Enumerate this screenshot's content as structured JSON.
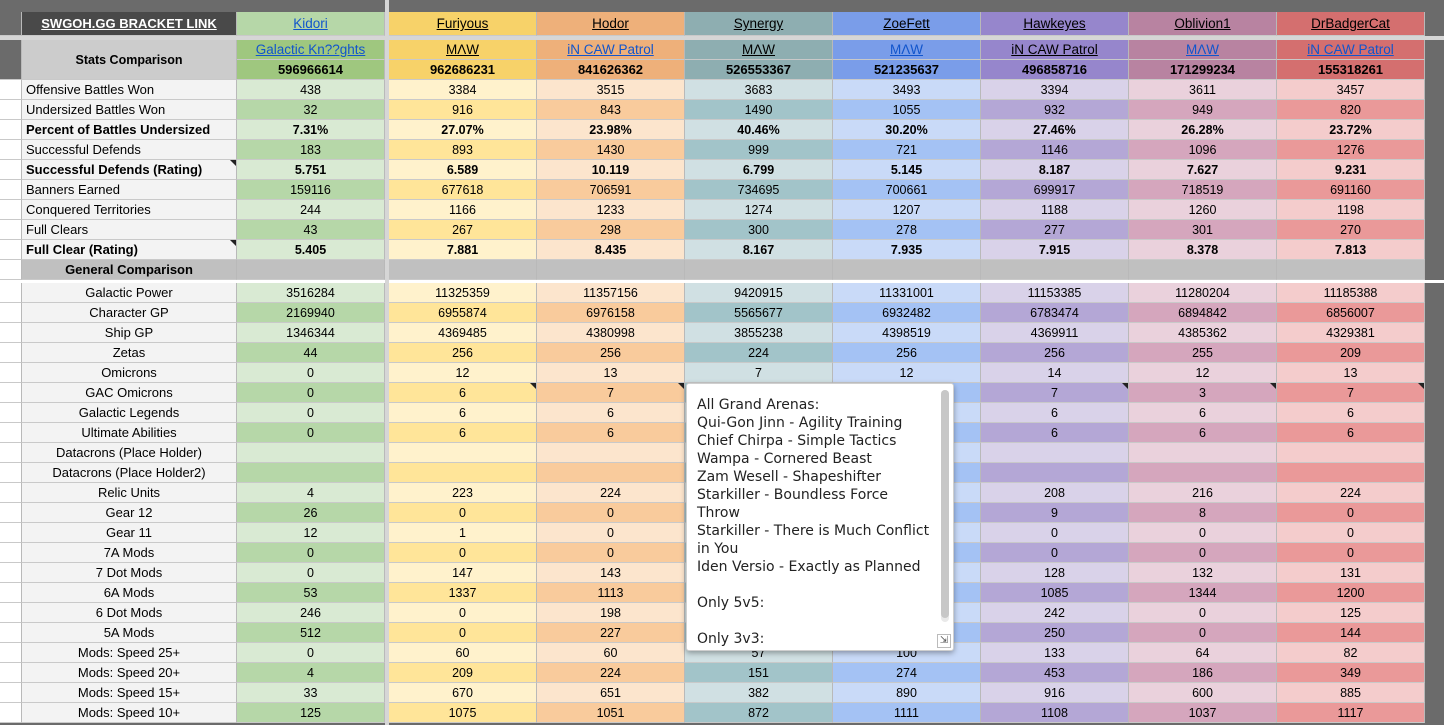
{
  "bracket_link": "SWGOH.GG BRACKET LINK",
  "stats_label": "Stats Comparison",
  "general_label": "General Comparison",
  "players": [
    {
      "name": "Kidori",
      "guild": "Galactic Kn??ghts",
      "guild_style": "link",
      "ally": "596966614",
      "color": "#9fc77f",
      "light": "#d9ead3",
      "mid": "#b6d7a8"
    },
    {
      "name": "Furiyous",
      "guild": "MΛW",
      "guild_style": "plain",
      "ally": "962686231",
      "color": "#f7d269",
      "light": "#fff2cc",
      "mid": "#ffe599"
    },
    {
      "name": "Hodor",
      "guild": "iN CAW Patrol",
      "guild_style": "link",
      "ally": "841626362",
      "color": "#eeb07a",
      "light": "#fce5cd",
      "mid": "#f9cb9c"
    },
    {
      "name": "Synergy",
      "guild": "MΛW",
      "guild_style": "plain",
      "ally": "526553367",
      "color": "#8eaeb1",
      "light": "#d0e0e3",
      "mid": "#a2c4c9"
    },
    {
      "name": "ZoeFett",
      "guild": "MΛW",
      "guild_style": "link",
      "ally": "521235637",
      "color": "#7a9de9",
      "light": "#c9daf8",
      "mid": "#a4c2f4"
    },
    {
      "name": "Hawkeyes",
      "guild": "iN CAW Patrol",
      "guild_style": "plain",
      "ally": "496858716",
      "color": "#9686cc",
      "light": "#d9d2e9",
      "mid": "#b4a7d6"
    },
    {
      "name": "Oblivion1",
      "guild": "MΛW",
      "guild_style": "link",
      "ally": "171299234",
      "color": "#b883a1",
      "light": "#ead1dc",
      "mid": "#d5a6bd"
    },
    {
      "name": "DrBadgerCat",
      "guild": "iN CAW Patrol",
      "guild_style": "link",
      "ally": "155318261",
      "color": "#d46f6f",
      "light": "#f4cccc",
      "mid": "#ea9999"
    }
  ],
  "stats_rows": [
    {
      "label": "Offensive Battles Won",
      "bold": false,
      "values": [
        "438",
        "3384",
        "3515",
        "3683",
        "3493",
        "3394",
        "3611",
        "3457"
      ]
    },
    {
      "label": "Undersized Battles Won",
      "bold": false,
      "values": [
        "32",
        "916",
        "843",
        "1490",
        "1055",
        "932",
        "949",
        "820"
      ]
    },
    {
      "label": "Percent of Battles Undersized",
      "bold": true,
      "values": [
        "7.31%",
        "27.07%",
        "23.98%",
        "40.46%",
        "30.20%",
        "27.46%",
        "26.28%",
        "23.72%"
      ]
    },
    {
      "label": "Successful Defends",
      "bold": false,
      "values": [
        "183",
        "893",
        "1430",
        "999",
        "721",
        "1146",
        "1096",
        "1276"
      ]
    },
    {
      "label": "Successful Defends (Rating)",
      "bold": true,
      "note": true,
      "values": [
        "5.751",
        "6.589",
        "10.119",
        "6.799",
        "5.145",
        "8.187",
        "7.627",
        "9.231"
      ]
    },
    {
      "label": "Banners Earned",
      "bold": false,
      "values": [
        "159116",
        "677618",
        "706591",
        "734695",
        "700661",
        "699917",
        "718519",
        "691160"
      ]
    },
    {
      "label": "Conquered Territories",
      "bold": false,
      "values": [
        "244",
        "1166",
        "1233",
        "1274",
        "1207",
        "1188",
        "1260",
        "1198"
      ]
    },
    {
      "label": "Full Clears",
      "bold": false,
      "values": [
        "43",
        "267",
        "298",
        "300",
        "278",
        "277",
        "301",
        "270"
      ]
    },
    {
      "label": "Full Clear (Rating)",
      "bold": true,
      "note": true,
      "values": [
        "5.405",
        "7.881",
        "8.435",
        "8.167",
        "7.935",
        "7.915",
        "8.378",
        "7.813"
      ]
    }
  ],
  "general_rows": [
    {
      "label": "Galactic Power",
      "values": [
        "3516284",
        "11325359",
        "11357156",
        "9420915",
        "11331001",
        "11153385",
        "11280204",
        "11185388"
      ]
    },
    {
      "label": "Character GP",
      "values": [
        "2169940",
        "6955874",
        "6976158",
        "5565677",
        "6932482",
        "6783474",
        "6894842",
        "6856007"
      ]
    },
    {
      "label": "Ship GP",
      "values": [
        "1346344",
        "4369485",
        "4380998",
        "3855238",
        "4398519",
        "4369911",
        "4385362",
        "4329381"
      ]
    },
    {
      "label": "Zetas",
      "values": [
        "44",
        "256",
        "256",
        "224",
        "256",
        "256",
        "255",
        "209"
      ]
    },
    {
      "label": "Omicrons",
      "values": [
        "0",
        "12",
        "13",
        "7",
        "12",
        "14",
        "12",
        "13"
      ]
    },
    {
      "label": "GAC Omicrons",
      "values": [
        "0",
        "6",
        "7",
        "",
        "",
        "7",
        "3",
        "7"
      ],
      "notes": [
        false,
        true,
        true,
        false,
        false,
        true,
        true,
        true
      ]
    },
    {
      "label": "Galactic Legends",
      "values": [
        "0",
        "6",
        "6",
        "",
        "",
        "6",
        "6",
        "6"
      ]
    },
    {
      "label": "Ultimate Abilities",
      "values": [
        "0",
        "6",
        "6",
        "",
        "",
        "6",
        "6",
        "6"
      ]
    },
    {
      "label": "Datacrons (Place Holder)",
      "values": [
        "",
        "",
        "",
        "",
        "",
        "",
        "",
        ""
      ]
    },
    {
      "label": "Datacrons (Place Holder2)",
      "values": [
        "",
        "",
        "",
        "",
        "",
        "",
        "",
        ""
      ]
    },
    {
      "label": "Relic Units",
      "values": [
        "4",
        "223",
        "224",
        "",
        "",
        "208",
        "216",
        "224"
      ]
    },
    {
      "label": "Gear 12",
      "values": [
        "26",
        "0",
        "0",
        "",
        "",
        "9",
        "8",
        "0"
      ]
    },
    {
      "label": "Gear 11",
      "values": [
        "12",
        "1",
        "0",
        "",
        "",
        "0",
        "0",
        "0"
      ]
    },
    {
      "label": "7A Mods",
      "values": [
        "0",
        "0",
        "0",
        "",
        "",
        "0",
        "0",
        "0"
      ]
    },
    {
      "label": "7 Dot Mods",
      "values": [
        "0",
        "147",
        "143",
        "",
        "",
        "128",
        "132",
        "131"
      ]
    },
    {
      "label": "6A Mods",
      "values": [
        "53",
        "1337",
        "1113",
        "",
        "",
        "1085",
        "1344",
        "1200"
      ]
    },
    {
      "label": "6 Dot Mods",
      "values": [
        "246",
        "0",
        "198",
        "",
        "",
        "242",
        "0",
        "125"
      ]
    },
    {
      "label": "5A Mods",
      "values": [
        "512",
        "0",
        "227",
        "",
        "",
        "250",
        "0",
        "144"
      ]
    },
    {
      "label": "Mods: Speed 25+",
      "values": [
        "0",
        "60",
        "60",
        "57",
        "100",
        "133",
        "64",
        "82"
      ]
    },
    {
      "label": "Mods: Speed 20+",
      "values": [
        "4",
        "209",
        "224",
        "151",
        "274",
        "453",
        "186",
        "349"
      ]
    },
    {
      "label": "Mods: Speed 15+",
      "values": [
        "33",
        "670",
        "651",
        "382",
        "890",
        "916",
        "600",
        "885"
      ]
    },
    {
      "label": "Mods: Speed 10+",
      "values": [
        "125",
        "1075",
        "1051",
        "872",
        "1111",
        "1108",
        "1037",
        "1117"
      ]
    }
  ],
  "note": {
    "text": "All Grand Arenas:\nQui-Gon Jinn - Agility Training\nChief Chirpa - Simple Tactics\nWampa - Cornered Beast\nZam Wesell - Shapeshifter\nStarkiller - Boundless Force Throw\nStarkiller - There is Much Conflict in You\nIden Versio - Exactly as Planned\n\nOnly 5v5:\n\nOnly 3v3:",
    "resize_glyph": "⇲"
  }
}
